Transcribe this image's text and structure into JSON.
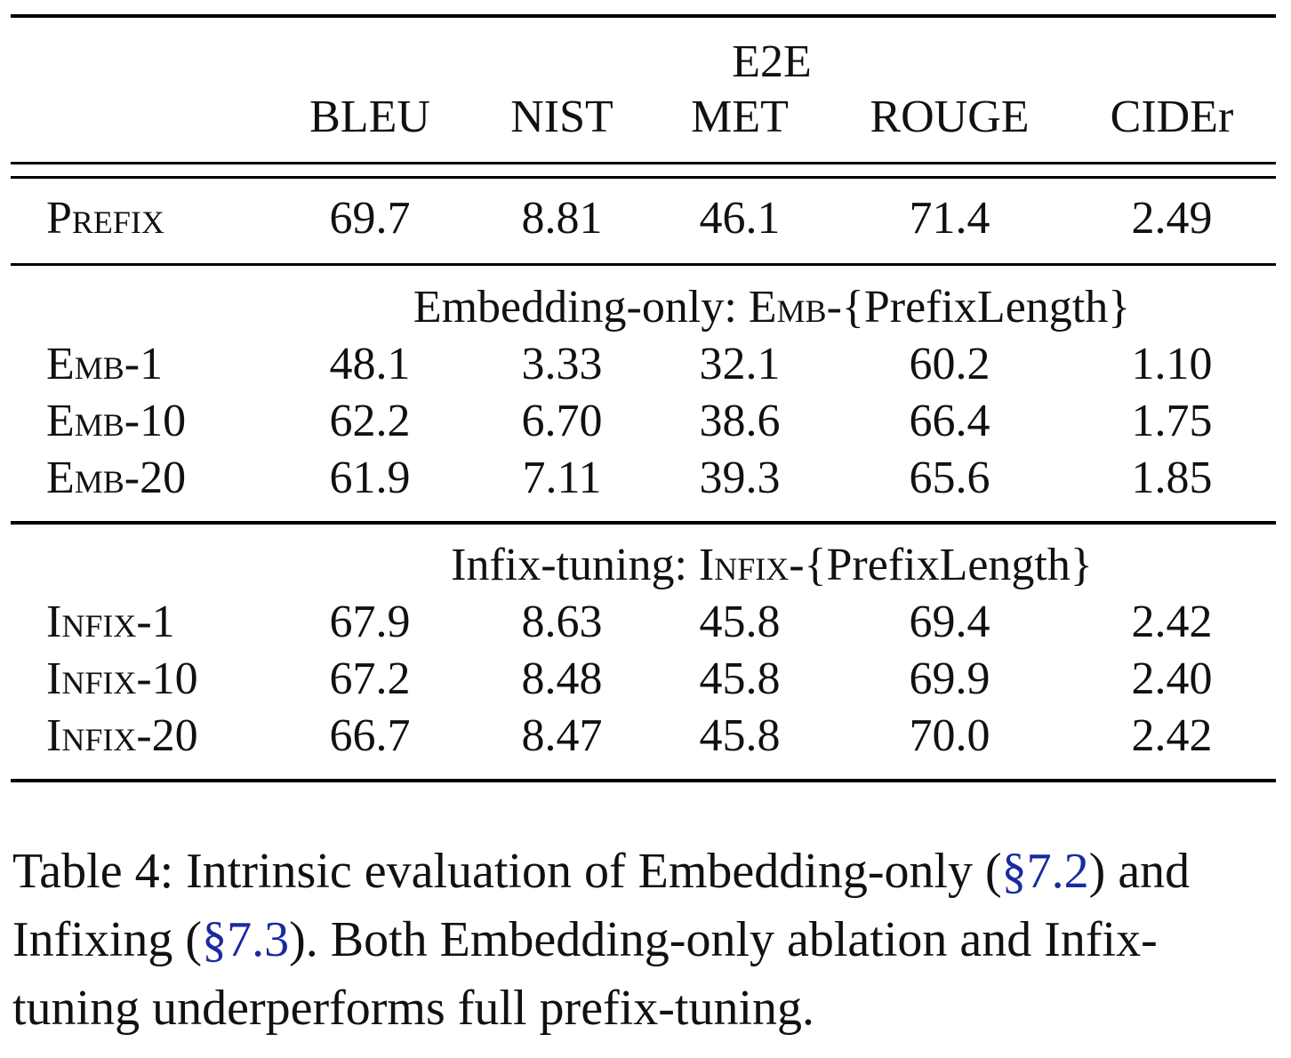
{
  "table": {
    "group_header": "E2E",
    "columns": [
      "BLEU",
      "NIST",
      "MET",
      "ROUGE",
      "CIDEr"
    ],
    "prefix_row": {
      "label": "Prefix",
      "values": [
        "69.7",
        "8.81",
        "46.1",
        "71.4",
        "2.49"
      ]
    },
    "sections": [
      {
        "title_pre": "Embedding-only: ",
        "title_sc": "Emb",
        "title_post": "-{PrefixLength}",
        "rows": [
          {
            "label_sc": "Emb",
            "label_suffix": "-1",
            "values": [
              "48.1",
              "3.33",
              "32.1",
              "60.2",
              "1.10"
            ]
          },
          {
            "label_sc": "Emb",
            "label_suffix": "-10",
            "values": [
              "62.2",
              "6.70",
              "38.6",
              "66.4",
              "1.75"
            ]
          },
          {
            "label_sc": "Emb",
            "label_suffix": "-20",
            "values": [
              "61.9",
              "7.11",
              "39.3",
              "65.6",
              "1.85"
            ]
          }
        ]
      },
      {
        "title_pre": "Infix-tuning: ",
        "title_sc": "Infix",
        "title_post": "-{PrefixLength}",
        "rows": [
          {
            "label_sc": "Infix",
            "label_suffix": "-1",
            "values": [
              "67.9",
              "8.63",
              "45.8",
              "69.4",
              "2.42"
            ]
          },
          {
            "label_sc": "Infix",
            "label_suffix": "-10",
            "values": [
              "67.2",
              "8.48",
              "45.8",
              "69.9",
              "2.40"
            ]
          },
          {
            "label_sc": "Infix",
            "label_suffix": "-20",
            "values": [
              "66.7",
              "8.47",
              "45.8",
              "70.0",
              "2.42"
            ]
          }
        ]
      }
    ]
  },
  "caption": {
    "t1": "Table 4:  Intrinsic evaluation of Embedding-only (",
    "r1": "§7.2",
    "t2": ") and Infixing (",
    "r2": "§7.3",
    "t3": ").  Both Embedding-only ablation and Infix-tuning underperforms full prefix-tuning.",
    "ref_color": "#1a2aa0"
  }
}
